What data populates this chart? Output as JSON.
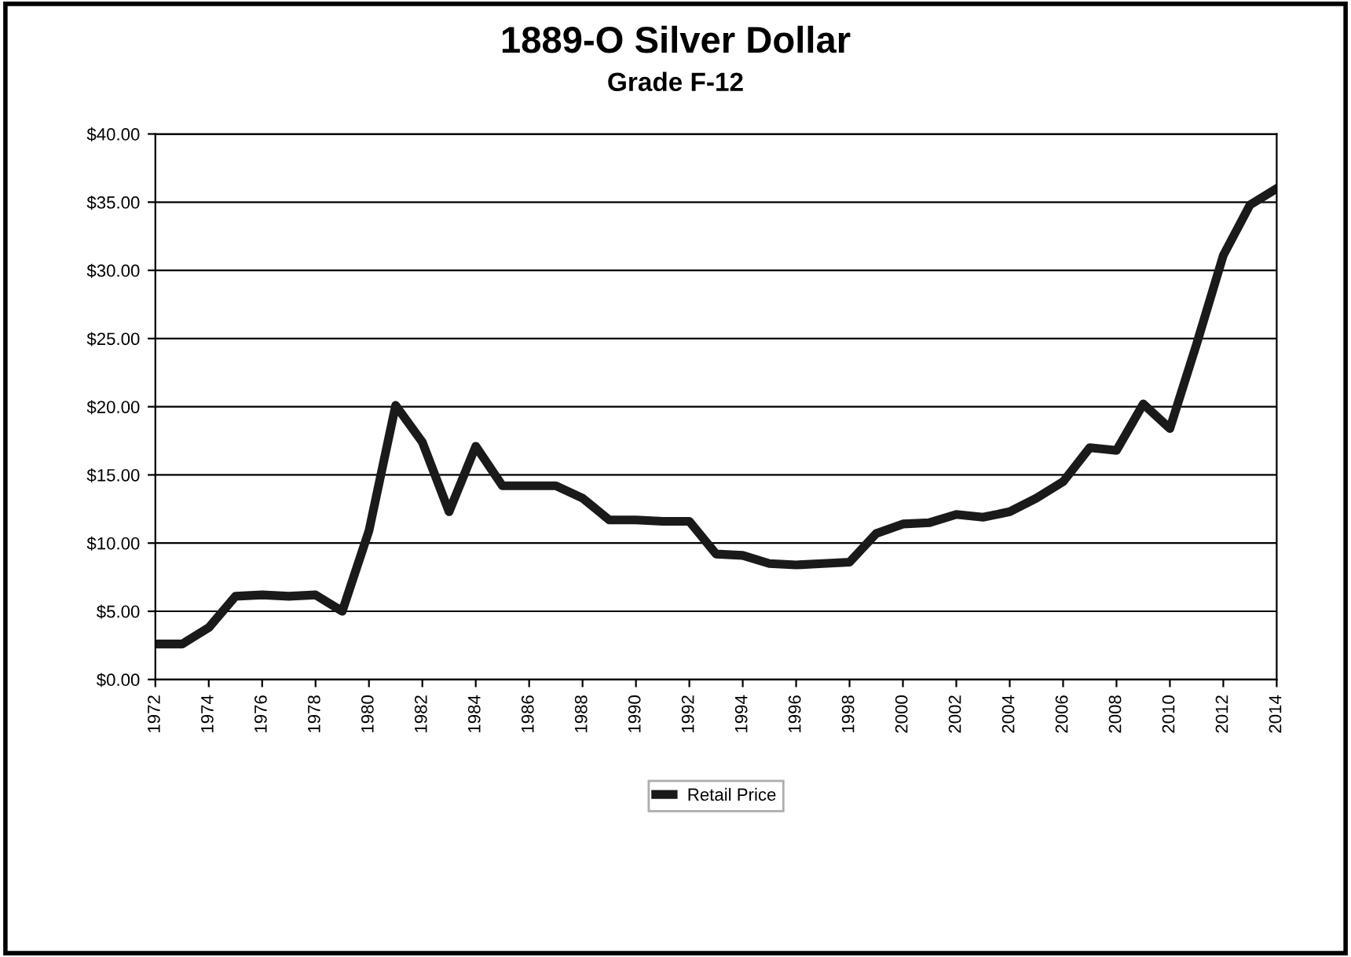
{
  "chart_data": {
    "type": "line",
    "title": "1889-O Silver Dollar",
    "subtitle": "Grade F-12",
    "x": [
      1972,
      1973,
      1974,
      1975,
      1976,
      1977,
      1978,
      1979,
      1980,
      1981,
      1982,
      1983,
      1984,
      1985,
      1986,
      1987,
      1988,
      1989,
      1990,
      1991,
      1992,
      1993,
      1994,
      1995,
      1996,
      1997,
      1998,
      1999,
      2000,
      2001,
      2002,
      2003,
      2004,
      2005,
      2006,
      2007,
      2008,
      2009,
      2010,
      2011,
      2012,
      2013,
      2014
    ],
    "series": [
      {
        "name": "Retail Price",
        "color": "#1a1a1a",
        "values": [
          2.6,
          2.6,
          3.8,
          6.1,
          6.2,
          6.1,
          6.2,
          5.0,
          10.9,
          20.1,
          17.4,
          12.3,
          17.1,
          14.2,
          14.2,
          14.2,
          13.3,
          11.7,
          11.7,
          11.6,
          11.6,
          9.2,
          9.1,
          8.5,
          8.4,
          8.5,
          8.6,
          10.7,
          11.4,
          11.5,
          12.1,
          11.9,
          12.3,
          13.3,
          14.5,
          17.0,
          16.8,
          20.2,
          18.4,
          24.6,
          31.1,
          34.8,
          36.0
        ]
      }
    ],
    "xlim": [
      1972,
      2014
    ],
    "xticks": [
      1972,
      1974,
      1976,
      1978,
      1980,
      1982,
      1984,
      1986,
      1988,
      1990,
      1992,
      1994,
      1996,
      1998,
      2000,
      2002,
      2004,
      2006,
      2008,
      2010,
      2012,
      2014
    ],
    "ylim": [
      0,
      40
    ],
    "yticks": [
      {
        "value": 0,
        "label": "$0.00"
      },
      {
        "value": 5,
        "label": "$5.00"
      },
      {
        "value": 10,
        "label": "$10.00"
      },
      {
        "value": 15,
        "label": "$15.00"
      },
      {
        "value": 20,
        "label": "$20.00"
      },
      {
        "value": 25,
        "label": "$25.00"
      },
      {
        "value": 30,
        "label": "$30.00"
      },
      {
        "value": 35,
        "label": "$35.00"
      },
      {
        "value": 40,
        "label": "$40.00"
      }
    ],
    "grid": "y",
    "legend": "bottom",
    "marker": "none",
    "line_style": "solid"
  }
}
